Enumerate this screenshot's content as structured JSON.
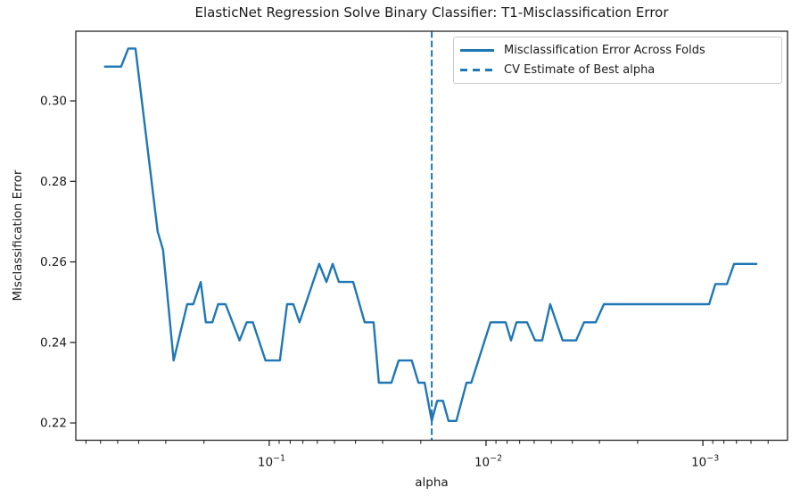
{
  "chart_data": {
    "type": "line",
    "title": "ElasticNet Regression Solve Binary Classifier: T1-Misclassification Error",
    "xlabel": "alpha",
    "ylabel": "Misclassification Error",
    "x_scale": "log-inverted",
    "grid": false,
    "xlim": [
      0.78,
      0.000407
    ],
    "ylim": [
      0.2157,
      0.3173
    ],
    "x_ticks": [
      0.1,
      0.01,
      0.001
    ],
    "x_tick_labels": [
      "10⁻¹",
      "10⁻²",
      "10⁻³"
    ],
    "y_ticks": [
      0.22,
      0.24,
      0.26,
      0.28,
      0.3
    ],
    "legend": [
      "Misclassification Error Across Folds",
      "CV Estimate of Best alpha"
    ],
    "legend_position": "upper right",
    "line_color": "#1f77b4",
    "axis_color": "#262626",
    "best_alpha": 0.0178,
    "best_alpha_line_style": "dashed",
    "series": [
      {
        "name": "Misclassification Error Across Folds",
        "points": [
          [
            0.572,
            0.3085
          ],
          [
            0.482,
            0.3085
          ],
          [
            0.447,
            0.313
          ],
          [
            0.414,
            0.313
          ],
          [
            0.327,
            0.2675
          ],
          [
            0.309,
            0.263
          ],
          [
            0.276,
            0.2355
          ],
          [
            0.239,
            0.2495
          ],
          [
            0.224,
            0.2495
          ],
          [
            0.207,
            0.255
          ],
          [
            0.196,
            0.245
          ],
          [
            0.183,
            0.245
          ],
          [
            0.172,
            0.2495
          ],
          [
            0.159,
            0.2495
          ],
          [
            0.137,
            0.2405
          ],
          [
            0.127,
            0.245
          ],
          [
            0.119,
            0.245
          ],
          [
            0.104,
            0.2355
          ],
          [
            0.0893,
            0.2355
          ],
          [
            0.0827,
            0.2495
          ],
          [
            0.0774,
            0.2495
          ],
          [
            0.0725,
            0.245
          ],
          [
            0.0588,
            0.2595
          ],
          [
            0.0545,
            0.255
          ],
          [
            0.051,
            0.2595
          ],
          [
            0.0477,
            0.255
          ],
          [
            0.041,
            0.255
          ],
          [
            0.0363,
            0.245
          ],
          [
            0.033,
            0.245
          ],
          [
            0.0312,
            0.23
          ],
          [
            0.0273,
            0.23
          ],
          [
            0.0253,
            0.2355
          ],
          [
            0.022,
            0.2355
          ],
          [
            0.0205,
            0.23
          ],
          [
            0.0192,
            0.23
          ],
          [
            0.0178,
            0.2205
          ],
          [
            0.0168,
            0.2255
          ],
          [
            0.0158,
            0.2255
          ],
          [
            0.0149,
            0.2205
          ],
          [
            0.0137,
            0.2205
          ],
          [
            0.0123,
            0.23
          ],
          [
            0.0117,
            0.23
          ],
          [
            0.00954,
            0.245
          ],
          [
            0.00812,
            0.245
          ],
          [
            0.00767,
            0.2405
          ],
          [
            0.00724,
            0.245
          ],
          [
            0.00647,
            0.245
          ],
          [
            0.00594,
            0.2405
          ],
          [
            0.00551,
            0.2405
          ],
          [
            0.00506,
            0.2495
          ],
          [
            0.00443,
            0.2405
          ],
          [
            0.00384,
            0.2405
          ],
          [
            0.00353,
            0.245
          ],
          [
            0.00312,
            0.245
          ],
          [
            0.00286,
            0.2495
          ],
          [
            0.000936,
            0.2495
          ],
          [
            0.000876,
            0.2545
          ],
          [
            0.000774,
            0.2545
          ],
          [
            0.000718,
            0.2595
          ],
          [
            0.000566,
            0.2595
          ]
        ]
      }
    ]
  }
}
